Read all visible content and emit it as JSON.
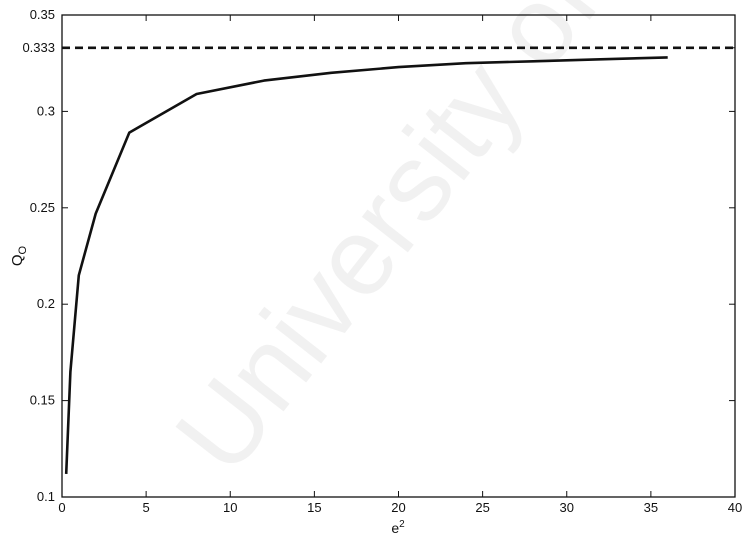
{
  "watermark": "University of Cape Town",
  "chart_data": {
    "type": "line",
    "xlabel": "e",
    "xlabel_superscript": "2",
    "ylabel": "Q",
    "ylabel_subscript": "O",
    "xlim": [
      0,
      40
    ],
    "ylim": [
      0.1,
      0.35
    ],
    "grid": false,
    "xticks": [
      {
        "value": 0,
        "label": "0"
      },
      {
        "value": 5,
        "label": "5"
      },
      {
        "value": 10,
        "label": "10"
      },
      {
        "value": 15,
        "label": "15"
      },
      {
        "value": 20,
        "label": "20"
      },
      {
        "value": 25,
        "label": "25"
      },
      {
        "value": 30,
        "label": "30"
      },
      {
        "value": 35,
        "label": "35"
      },
      {
        "value": 40,
        "label": "40"
      }
    ],
    "yticks": [
      {
        "value": 0.1,
        "label": "0.1"
      },
      {
        "value": 0.15,
        "label": "0.15"
      },
      {
        "value": 0.2,
        "label": "0.2"
      },
      {
        "value": 0.25,
        "label": "0.25"
      },
      {
        "value": 0.3,
        "label": "0.3"
      },
      {
        "value": 0.333,
        "label": "0.333"
      },
      {
        "value": 0.35,
        "label": "0.35"
      }
    ],
    "series": [
      {
        "style": "solid",
        "color": "#111111",
        "x": [
          0.25,
          0.5,
          0.75,
          1,
          2,
          4,
          8,
          12,
          16,
          20,
          24,
          28,
          32,
          36
        ],
        "y": [
          0.112,
          0.165,
          0.19,
          0.215,
          0.247,
          0.289,
          0.309,
          0.316,
          0.32,
          0.323,
          0.325,
          0.326,
          0.327,
          0.328
        ]
      },
      {
        "style": "dashed",
        "color": "#111111",
        "x": [
          0,
          40
        ],
        "y": [
          0.333,
          0.333
        ]
      }
    ]
  }
}
